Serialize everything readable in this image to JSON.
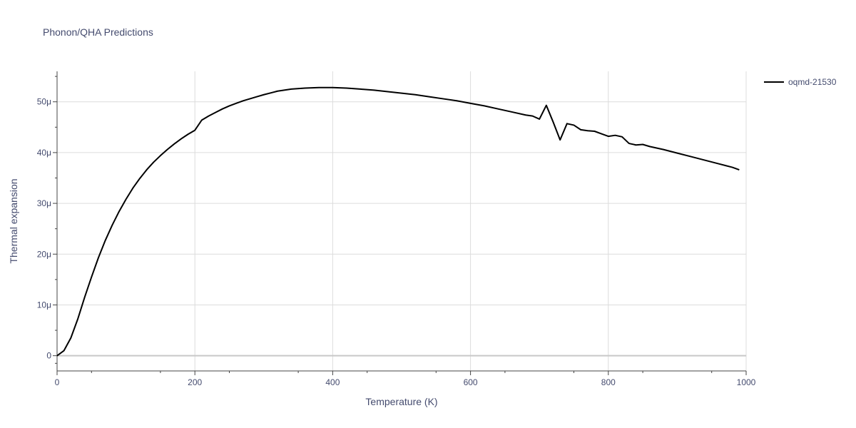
{
  "chart_data": {
    "type": "line",
    "title": "Phonon/QHA Predictions",
    "xlabel": "Temperature (K)",
    "ylabel": "Thermal expansion",
    "xlim": [
      0,
      1000
    ],
    "ylim": [
      -3e-06,
      5.6e-05
    ],
    "x_ticks": [
      0,
      200,
      400,
      600,
      800,
      1000
    ],
    "x_tick_labels": [
      "0",
      "200",
      "400",
      "600",
      "800",
      "1000"
    ],
    "y_ticks": [
      0,
      1e-05,
      2e-05,
      3e-05,
      4e-05,
      5e-05
    ],
    "y_tick_labels": [
      "0",
      "10μ",
      "20μ",
      "30μ",
      "40μ",
      "50μ"
    ],
    "grid": true,
    "legend_position": "top-right",
    "series": [
      {
        "name": "oqmd-21530",
        "color": "#000000",
        "x": [
          0,
          10,
          20,
          30,
          40,
          50,
          60,
          70,
          80,
          90,
          100,
          110,
          120,
          130,
          140,
          150,
          160,
          170,
          180,
          190,
          200,
          210,
          220,
          230,
          240,
          250,
          260,
          270,
          280,
          290,
          300,
          320,
          340,
          360,
          380,
          400,
          420,
          440,
          460,
          480,
          500,
          520,
          540,
          560,
          580,
          600,
          620,
          640,
          660,
          680,
          690,
          700,
          710,
          720,
          730,
          740,
          750,
          760,
          770,
          780,
          790,
          800,
          810,
          820,
          830,
          840,
          850,
          860,
          870,
          880,
          900,
          920,
          940,
          960,
          980,
          990
        ],
        "y": [
          0.0,
          1e-06,
          3.5e-06,
          7.2e-06,
          1.15e-05,
          1.55e-05,
          1.93e-05,
          2.27e-05,
          2.57e-05,
          2.84e-05,
          3.08e-05,
          3.3e-05,
          3.49e-05,
          3.66e-05,
          3.81e-05,
          3.94e-05,
          4.06e-05,
          4.17e-05,
          4.27e-05,
          4.36e-05,
          4.44e-05,
          4.64e-05,
          4.72e-05,
          4.79e-05,
          4.86e-05,
          4.92e-05,
          4.97e-05,
          5.02e-05,
          5.06e-05,
          5.1e-05,
          5.14e-05,
          5.21e-05,
          5.25e-05,
          5.27e-05,
          5.28e-05,
          5.28e-05,
          5.27e-05,
          5.25e-05,
          5.23e-05,
          5.2e-05,
          5.17e-05,
          5.14e-05,
          5.1e-05,
          5.06e-05,
          5.02e-05,
          4.97e-05,
          4.92e-05,
          4.86e-05,
          4.8e-05,
          4.74e-05,
          4.72e-05,
          4.66e-05,
          4.93e-05,
          4.6e-05,
          4.25e-05,
          4.57e-05,
          4.54e-05,
          4.45e-05,
          4.43e-05,
          4.42e-05,
          4.37e-05,
          4.32e-05,
          4.34e-05,
          4.31e-05,
          4.18e-05,
          4.15e-05,
          4.16e-05,
          4.12e-05,
          4.09e-05,
          4.06e-05,
          3.99e-05,
          3.92e-05,
          3.85e-05,
          3.78e-05,
          3.71e-05,
          3.66e-05
        ]
      }
    ]
  }
}
